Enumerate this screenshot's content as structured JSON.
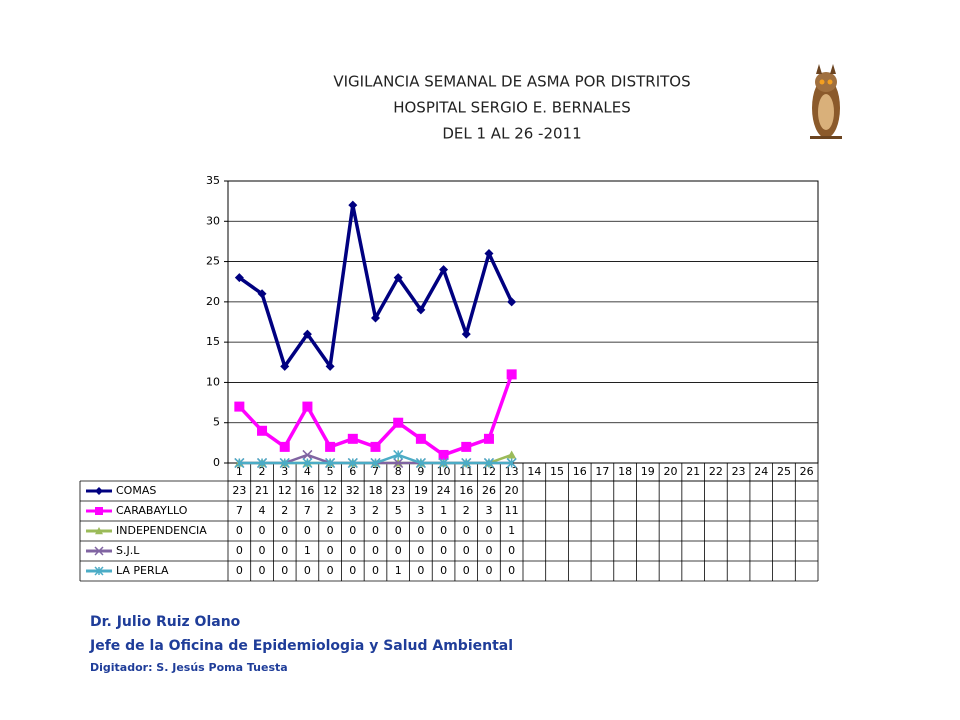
{
  "chart_data": {
    "type": "line",
    "title": [
      "VIGILANCIA SEMANAL DE ASMA POR DISTRITOS",
      "HOSPITAL SERGIO E. BERNALES",
      "DEL 1 AL 26 -2011"
    ],
    "categories": [
      "1",
      "2",
      "3",
      "4",
      "5",
      "6",
      "7",
      "8",
      "9",
      "10",
      "11",
      "12",
      "13",
      "14",
      "15",
      "16",
      "17",
      "18",
      "19",
      "20",
      "21",
      "22",
      "23",
      "24",
      "25",
      "26"
    ],
    "series": [
      {
        "name": "COMAS",
        "color": "#000080",
        "marker": "diamond",
        "values": [
          23,
          21,
          12,
          16,
          12,
          32,
          18,
          23,
          19,
          24,
          16,
          26,
          20,
          null,
          null,
          null,
          null,
          null,
          null,
          null,
          null,
          null,
          null,
          null,
          null,
          null
        ]
      },
      {
        "name": "CARABAYLLO",
        "color": "#ff00ff",
        "marker": "square",
        "values": [
          7,
          4,
          2,
          7,
          2,
          3,
          2,
          5,
          3,
          1,
          2,
          3,
          11,
          null,
          null,
          null,
          null,
          null,
          null,
          null,
          null,
          null,
          null,
          null,
          null,
          null
        ]
      },
      {
        "name": "INDEPENDENCIA",
        "color": "#9bbb59",
        "marker": "triangle",
        "values": [
          0,
          0,
          0,
          0,
          0,
          0,
          0,
          0,
          0,
          0,
          0,
          0,
          1,
          null,
          null,
          null,
          null,
          null,
          null,
          null,
          null,
          null,
          null,
          null,
          null,
          null
        ]
      },
      {
        "name": "S.J.L",
        "color": "#8064a2",
        "marker": "x",
        "values": [
          0,
          0,
          0,
          1,
          0,
          0,
          0,
          0,
          0,
          0,
          0,
          0,
          0,
          null,
          null,
          null,
          null,
          null,
          null,
          null,
          null,
          null,
          null,
          null,
          null,
          null
        ]
      },
      {
        "name": "LA PERLA",
        "color": "#4bacc6",
        "marker": "star",
        "values": [
          0,
          0,
          0,
          0,
          0,
          0,
          0,
          1,
          0,
          0,
          0,
          0,
          0,
          null,
          null,
          null,
          null,
          null,
          null,
          null,
          null,
          null,
          null,
          null,
          null,
          null
        ]
      }
    ],
    "ylim": [
      0,
      35
    ],
    "yticks": [
      0,
      5,
      10,
      15,
      20,
      25,
      30,
      35
    ],
    "grid": true
  },
  "footer": [
    "Dr.  Julio Ruiz Olano",
    "Jefe de la Oficina de Epidemiologia y  Salud Ambiental",
    "Digitador: S. Jesús Poma Tuesta"
  ]
}
